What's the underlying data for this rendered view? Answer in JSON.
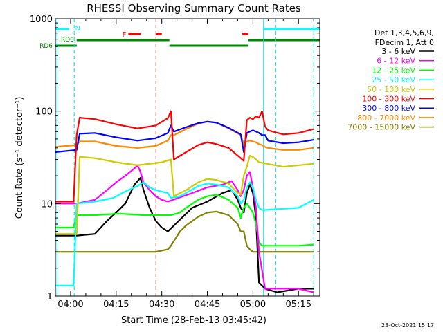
{
  "chart_data": {
    "type": "line",
    "title": "RHESSI Observing Summary Count Rates",
    "xlabel": "Start Time (28-Feb-13 03:45:42)",
    "ylabel": "Count Rate (s⁻¹ detector⁻¹)",
    "yscale": "log",
    "ylim": [
      1,
      1000
    ],
    "xlim_minutes": [
      -5,
      82
    ],
    "x_tick_labels": [
      "04:00",
      "04:15",
      "04:30",
      "04:45",
      "05:00",
      "05:15"
    ],
    "x_ticks_minutes": [
      0,
      15,
      30,
      45,
      60,
      75
    ],
    "y_tick_labels": [
      "1",
      "10",
      "100",
      "1000"
    ],
    "y_ticks": [
      1,
      10,
      100,
      1000
    ],
    "timestamp": "23-Oct-2021 15:17",
    "legend_header": [
      "Det 1,3,4,5,6,9,",
      "FDecim 1, Att 0"
    ],
    "flags": {
      "night_label": "N",
      "flare_label": "F",
      "rd0_label": "RD0",
      "rd6_label": "RD6"
    },
    "series": [
      {
        "name": "3 - 6 keV",
        "color": "#000000",
        "x": [
          -5,
          2,
          8,
          12,
          15,
          18,
          21,
          23,
          24,
          26,
          28,
          30,
          32,
          40,
          45,
          50,
          53,
          55,
          56,
          57,
          58,
          59,
          60,
          61,
          62,
          64,
          68,
          75,
          80
        ],
        "y": [
          4.5,
          4.5,
          4.7,
          6.5,
          8,
          10,
          16,
          19,
          14,
          9,
          6.5,
          5.5,
          5,
          9,
          10.5,
          13,
          14,
          11,
          9,
          8,
          13,
          16,
          13,
          7,
          1.4,
          1.2,
          1.1,
          1.2,
          1.2
        ]
      },
      {
        "name": "6 - 12 keV",
        "color": "#ff00ff",
        "x": [
          -5,
          2,
          8,
          12,
          15,
          18,
          21,
          22,
          23,
          24,
          26,
          28,
          30,
          32,
          40,
          45,
          50,
          53,
          55,
          56,
          57,
          58,
          59,
          60,
          61,
          62,
          64,
          68,
          75,
          80
        ],
        "y": [
          10,
          10,
          11,
          14,
          17,
          20,
          24,
          26,
          22,
          17,
          14,
          12,
          11,
          10.5,
          13,
          15,
          16,
          17.5,
          14,
          12,
          14,
          20,
          22,
          15,
          9,
          3,
          1.2,
          1.2,
          1.2,
          1.1
        ]
      },
      {
        "name": "12 - 25 keV",
        "color": "#00ff00",
        "x": [
          -5,
          1,
          2,
          8,
          16,
          24,
          30,
          33,
          36,
          38,
          42,
          45,
          48,
          52,
          55,
          56,
          57,
          58,
          59,
          60,
          61,
          62,
          63,
          75,
          80
        ],
        "y": [
          5.5,
          5.5,
          7.5,
          7.5,
          7.8,
          7.5,
          7.5,
          7.5,
          8,
          9,
          11,
          12,
          12.5,
          11,
          9,
          7,
          9,
          10,
          9,
          8,
          6,
          3.8,
          3.5,
          3.5,
          3.6
        ]
      },
      {
        "name": "25 - 50 keV",
        "color": "#00ffff",
        "x": [
          -5,
          1,
          2,
          8,
          14,
          18,
          22,
          24,
          26,
          28,
          32,
          33,
          36,
          38,
          42,
          45,
          48,
          52,
          55,
          56,
          57,
          58,
          59,
          60,
          61,
          62,
          63,
          75,
          80
        ],
        "y": [
          1.3,
          1.3,
          10,
          10.5,
          11.5,
          13.5,
          15.5,
          17,
          15,
          14,
          13,
          11.5,
          12,
          13,
          15.5,
          16.5,
          16,
          15,
          12,
          10,
          11,
          15,
          17,
          15,
          11,
          9,
          8.5,
          9,
          11
        ]
      },
      {
        "name": "50 - 100 keV",
        "color": "#cccc00",
        "x": [
          -5,
          2,
          3,
          8,
          15,
          22,
          30,
          33,
          34,
          38,
          42,
          45,
          48,
          52,
          55,
          56,
          57,
          58,
          59,
          60,
          61,
          62,
          70,
          80
        ],
        "y": [
          4.7,
          4.7,
          32,
          31,
          28,
          26,
          28,
          30,
          12,
          14,
          17,
          18.5,
          18,
          16.5,
          13,
          12.5,
          20,
          25,
          33,
          32,
          30,
          28,
          25,
          27
        ]
      },
      {
        "name": "100 - 300 keV",
        "color": "#ff0000",
        "x": [
          -5,
          1,
          2,
          3,
          8,
          15,
          22,
          28,
          32,
          33,
          34,
          38,
          42,
          45,
          48,
          52,
          56,
          57,
          58,
          59,
          60,
          61,
          62,
          63,
          64,
          65,
          70,
          75,
          80
        ],
        "y": [
          10.5,
          10.5,
          55,
          85,
          82,
          72,
          65,
          70,
          84,
          100,
          30,
          36,
          43,
          46,
          44,
          40,
          31,
          29,
          80,
          85,
          82,
          88,
          85,
          100,
          68,
          62,
          56,
          58,
          64
        ]
      },
      {
        "name": "300 - 800 keV",
        "color": "#0000ff",
        "x": [
          -5,
          2,
          3,
          8,
          15,
          22,
          28,
          32,
          33,
          34,
          38,
          42,
          45,
          48,
          52,
          56,
          57,
          58,
          59,
          60,
          61,
          62,
          63,
          64,
          65,
          70,
          75,
          80
        ],
        "y": [
          36,
          38,
          57,
          58,
          52,
          48,
          51,
          58,
          70,
          60,
          67,
          74,
          77,
          75,
          66,
          56,
          36,
          58,
          60,
          62,
          60,
          58,
          55,
          55,
          48,
          45,
          46,
          49
        ]
      },
      {
        "name": "800 - 7000 keV",
        "color": "#ff8800",
        "x": [
          -5,
          2,
          3,
          8,
          15,
          22,
          28,
          32,
          33,
          34,
          38,
          42,
          45,
          48,
          52,
          56,
          57,
          58,
          59,
          60,
          61,
          62,
          63,
          64,
          65,
          70,
          75,
          80
        ],
        "y": [
          41,
          43,
          47,
          47,
          42,
          40,
          42,
          48,
          55,
          55,
          64,
          73,
          77,
          75,
          65,
          55,
          44,
          47,
          48,
          47,
          46,
          44,
          43,
          41,
          40,
          38,
          38,
          40
        ]
      },
      {
        "name": "7000 - 15000 keV",
        "color": "#808000",
        "x": [
          -5,
          2,
          8,
          15,
          22,
          28,
          32,
          33,
          36,
          38,
          42,
          45,
          48,
          52,
          55,
          56,
          57,
          58,
          59,
          60,
          61,
          62,
          63,
          75,
          80
        ],
        "y": [
          3,
          3,
          3,
          3,
          3,
          3,
          3.2,
          3.5,
          5,
          5.8,
          7.2,
          8,
          8.2,
          7.5,
          6,
          5,
          5,
          3.5,
          3.2,
          3,
          3,
          3,
          3,
          3,
          3
        ]
      }
    ]
  }
}
